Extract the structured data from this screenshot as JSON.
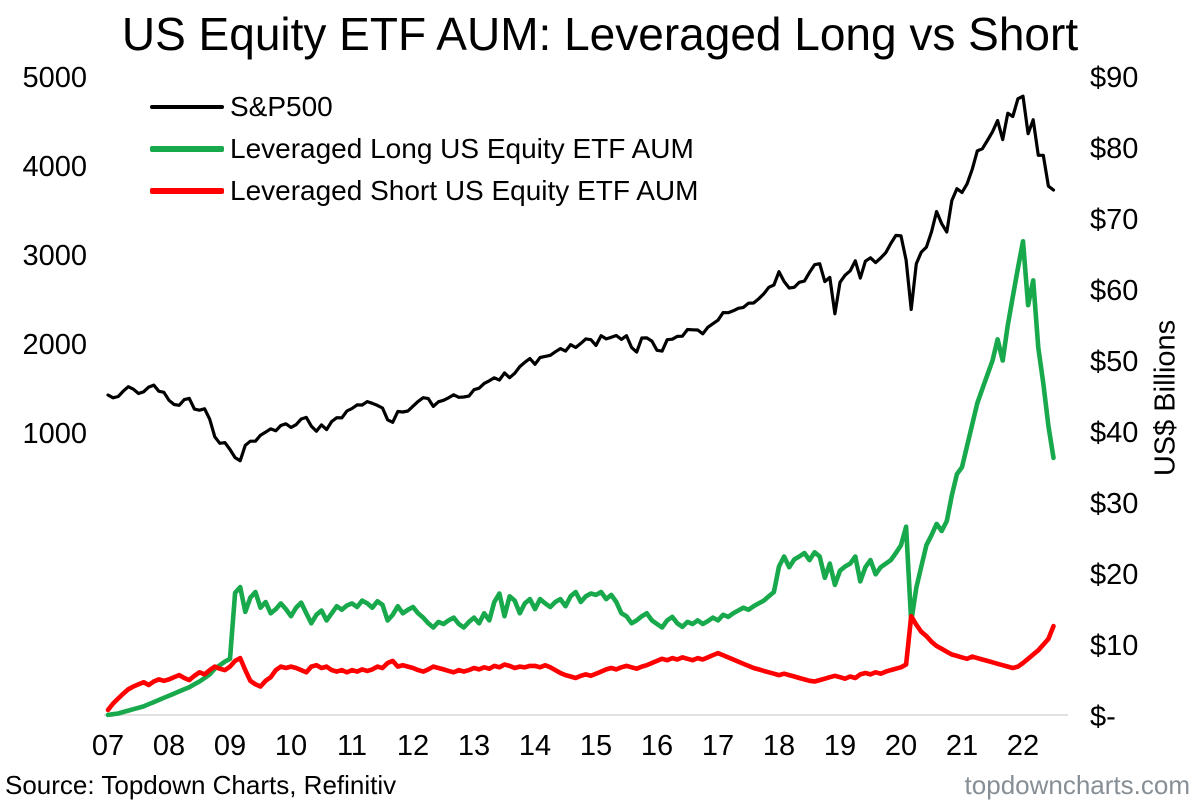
{
  "footer": {
    "source": "Source: Topdown Charts, Refinitiv",
    "watermark": "topdowncharts.com"
  },
  "chart_data": {
    "type": "line",
    "title": "US Equity ETF AUM: Leveraged Long vs Short",
    "sampling": "monthly",
    "x_start": 2007.0,
    "x_step": 0.0833333,
    "x_range": [
      2007.0,
      2022.58
    ],
    "grid": false,
    "legend_position": "top-left-inside",
    "x_axis": {
      "ticks": [
        {
          "label": "07",
          "year": 2007
        },
        {
          "label": "08",
          "year": 2008
        },
        {
          "label": "09",
          "year": 2009
        },
        {
          "label": "10",
          "year": 2010
        },
        {
          "label": "11",
          "year": 2011
        },
        {
          "label": "12",
          "year": 2012
        },
        {
          "label": "13",
          "year": 2013
        },
        {
          "label": "14",
          "year": 2014
        },
        {
          "label": "15",
          "year": 2015
        },
        {
          "label": "16",
          "year": 2016
        },
        {
          "label": "17",
          "year": 2017
        },
        {
          "label": "18",
          "year": 2018
        },
        {
          "label": "19",
          "year": 2019
        },
        {
          "label": "20",
          "year": 2020
        },
        {
          "label": "21",
          "year": 2021
        },
        {
          "label": "22",
          "year": 2022
        }
      ]
    },
    "left_axis": {
      "applies_to": "S&P500 index points",
      "ticks": [
        {
          "label": "5000",
          "value": 5000
        },
        {
          "label": "4000",
          "value": 4000
        },
        {
          "label": "3000",
          "value": 3000
        },
        {
          "label": "2000",
          "value": 2000
        },
        {
          "label": "1000",
          "value": 1000
        }
      ]
    },
    "right_axis": {
      "label": "US$ Billions",
      "ticks": [
        {
          "label": "$90",
          "value": 90
        },
        {
          "label": "$80",
          "value": 80
        },
        {
          "label": "$70",
          "value": 70
        },
        {
          "label": "$60",
          "value": 60
        },
        {
          "label": "$50",
          "value": 50
        },
        {
          "label": "$40",
          "value": 40
        },
        {
          "label": "$30",
          "value": 30
        },
        {
          "label": "$20",
          "value": 20
        },
        {
          "label": "$10",
          "value": 10
        },
        {
          "label": "$-",
          "value": 0
        }
      ]
    },
    "series": [
      {
        "name": "S&P500",
        "axis": "left",
        "color": "#000000",
        "stroke_width": 3.2,
        "values": [
          1438,
          1407,
          1421,
          1482,
          1531,
          1503,
          1455,
          1474,
          1527,
          1549,
          1481,
          1468,
          1379,
          1331,
          1323,
          1386,
          1400,
          1280,
          1267,
          1283,
          1166,
          969,
          896,
          903,
          826,
          735,
          700,
          873,
          919,
          919,
          987,
          1021,
          1057,
          1036,
          1096,
          1115,
          1074,
          1104,
          1169,
          1187,
          1089,
          1031,
          1102,
          1049,
          1141,
          1183,
          1181,
          1258,
          1286,
          1327,
          1326,
          1364,
          1345,
          1321,
          1292,
          1159,
          1131,
          1253,
          1247,
          1258,
          1312,
          1366,
          1408,
          1398,
          1310,
          1362,
          1379,
          1407,
          1441,
          1412,
          1416,
          1426,
          1498,
          1515,
          1569,
          1598,
          1631,
          1606,
          1686,
          1633,
          1682,
          1757,
          1806,
          1848,
          1783,
          1859,
          1872,
          1884,
          1924,
          1960,
          1931,
          2003,
          1972,
          2018,
          2068,
          2059,
          1995,
          2105,
          2068,
          2086,
          2107,
          2063,
          2104,
          1972,
          1920,
          2079,
          2080,
          2044,
          1940,
          1932,
          2060,
          2065,
          2097,
          2099,
          2174,
          2171,
          2168,
          2126,
          2199,
          2239,
          2279,
          2364,
          2363,
          2384,
          2412,
          2423,
          2470,
          2472,
          2519,
          2575,
          2648,
          2674,
          2824,
          2714,
          2641,
          2648,
          2705,
          2718,
          2816,
          2902,
          2914,
          2712,
          2760,
          2351,
          2704,
          2784,
          2834,
          2946,
          2752,
          2942,
          2980,
          2926,
          2977,
          3038,
          3141,
          3231,
          3226,
          2954,
          2400,
          2912,
          3044,
          3100,
          3271,
          3500,
          3363,
          3270,
          3622,
          3756,
          3714,
          3811,
          3973,
          4181,
          4204,
          4298,
          4395,
          4523,
          4308,
          4605,
          4567,
          4766,
          4796,
          4374,
          4530,
          4132,
          4132,
          3785,
          3742
        ]
      },
      {
        "name": "Leveraged Long US Equity ETF AUM",
        "axis": "right",
        "color": "#17a94b",
        "stroke_width": 4.6,
        "values": [
          0.3,
          0.4,
          0.5,
          0.7,
          0.9,
          1.1,
          1.3,
          1.5,
          1.8,
          2.1,
          2.4,
          2.7,
          3.0,
          3.3,
          3.6,
          3.9,
          4.2,
          4.6,
          5.0,
          5.5,
          6.0,
          6.8,
          7.3,
          7.8,
          8.2,
          17.5,
          18.3,
          14.8,
          16.8,
          17.6,
          15.4,
          16.2,
          14.6,
          15.2,
          16.0,
          15.2,
          14.2,
          15.4,
          16.1,
          14.6,
          13.2,
          14.4,
          15.0,
          13.6,
          14.6,
          15.6,
          15.1,
          15.7,
          16.0,
          15.5,
          16.4,
          16.0,
          15.4,
          16.3,
          15.8,
          13.6,
          14.4,
          15.6,
          14.6,
          15.1,
          15.5,
          14.6,
          14.0,
          13.2,
          12.6,
          13.4,
          13.1,
          13.6,
          14.0,
          13.1,
          12.6,
          13.4,
          14.0,
          13.2,
          14.6,
          13.6,
          16.2,
          17.4,
          14.2,
          17.0,
          16.4,
          14.6,
          16.0,
          16.6,
          15.2,
          16.6,
          16.0,
          15.5,
          16.2,
          16.6,
          15.6,
          17.0,
          17.6,
          16.2,
          17.0,
          17.4,
          17.2,
          17.6,
          16.6,
          17.2,
          16.2,
          14.6,
          14.2,
          13.2,
          13.6,
          14.2,
          14.6,
          13.6,
          13.1,
          12.6,
          13.6,
          14.1,
          13.2,
          12.7,
          13.4,
          13.1,
          13.6,
          13.1,
          13.5,
          14.0,
          13.6,
          14.4,
          14.1,
          14.6,
          15.0,
          15.4,
          15.1,
          15.6,
          16.0,
          16.4,
          17.0,
          17.6,
          21.2,
          22.6,
          21.1,
          22.2,
          22.6,
          23.1,
          22.1,
          23.2,
          22.6,
          19.6,
          21.6,
          18.6,
          20.6,
          21.2,
          21.6,
          22.6,
          19.1,
          21.1,
          22.1,
          20.1,
          21.1,
          21.6,
          22.1,
          23.1,
          24.2,
          26.8,
          13.4,
          18.2,
          21.2,
          24.2,
          25.6,
          27.2,
          26.2,
          27.6,
          31.2,
          34.2,
          35.2,
          38.2,
          41.2,
          44.2,
          46.2,
          48.2,
          50.2,
          53.2,
          50.2,
          55.2,
          59.2,
          63.2,
          67.0,
          58.0,
          61.5,
          52.0,
          47.0,
          41.0,
          36.5
        ]
      },
      {
        "name": "Leveraged Short US Equity ETF AUM",
        "axis": "right",
        "color": "#ff0000",
        "stroke_width": 4.6,
        "values": [
          1.0,
          1.9,
          2.6,
          3.3,
          3.9,
          4.3,
          4.6,
          4.9,
          4.5,
          5.0,
          5.3,
          5.1,
          5.3,
          5.6,
          5.9,
          5.5,
          5.2,
          5.8,
          6.3,
          6.0,
          6.6,
          7.1,
          6.8,
          6.6,
          7.1,
          7.9,
          8.3,
          6.6,
          5.1,
          4.6,
          4.3,
          5.1,
          5.6,
          6.6,
          7.1,
          6.9,
          7.1,
          6.9,
          6.6,
          6.3,
          7.1,
          7.3,
          6.9,
          7.1,
          6.6,
          6.4,
          6.6,
          6.3,
          6.6,
          6.4,
          6.7,
          6.5,
          6.7,
          7.1,
          6.9,
          7.6,
          7.9,
          7.1,
          7.3,
          7.1,
          6.9,
          6.6,
          6.4,
          6.7,
          7.1,
          6.9,
          6.7,
          6.5,
          6.3,
          6.6,
          6.4,
          6.6,
          6.9,
          6.7,
          7.0,
          6.8,
          7.2,
          7.0,
          7.4,
          7.2,
          6.9,
          7.1,
          7.0,
          7.2,
          7.2,
          7.0,
          7.3,
          7.0,
          6.6,
          6.2,
          5.9,
          5.7,
          5.5,
          5.8,
          6.0,
          5.8,
          6.1,
          6.4,
          6.7,
          6.9,
          6.7,
          7.0,
          7.2,
          7.0,
          6.8,
          7.1,
          7.3,
          7.6,
          7.9,
          8.2,
          8.0,
          8.3,
          8.1,
          8.4,
          8.2,
          8.0,
          8.3,
          8.1,
          8.4,
          8.7,
          9.0,
          8.7,
          8.4,
          8.1,
          7.8,
          7.5,
          7.2,
          6.9,
          6.7,
          6.5,
          6.3,
          6.1,
          5.9,
          6.1,
          5.9,
          5.7,
          5.5,
          5.3,
          5.1,
          5.0,
          5.2,
          5.4,
          5.6,
          5.8,
          5.6,
          5.4,
          5.7,
          5.5,
          6.0,
          6.2,
          6.0,
          6.3,
          6.1,
          6.4,
          6.6,
          6.8,
          7.0,
          7.4,
          14.2,
          13.0,
          12.0,
          11.4,
          10.6,
          10.0,
          9.6,
          9.2,
          8.8,
          8.6,
          8.4,
          8.2,
          8.5,
          8.3,
          8.1,
          7.9,
          7.7,
          7.5,
          7.3,
          7.1,
          6.9,
          7.1,
          7.6,
          8.2,
          8.8,
          9.4,
          10.2,
          11.0,
          12.8
        ]
      }
    ]
  }
}
